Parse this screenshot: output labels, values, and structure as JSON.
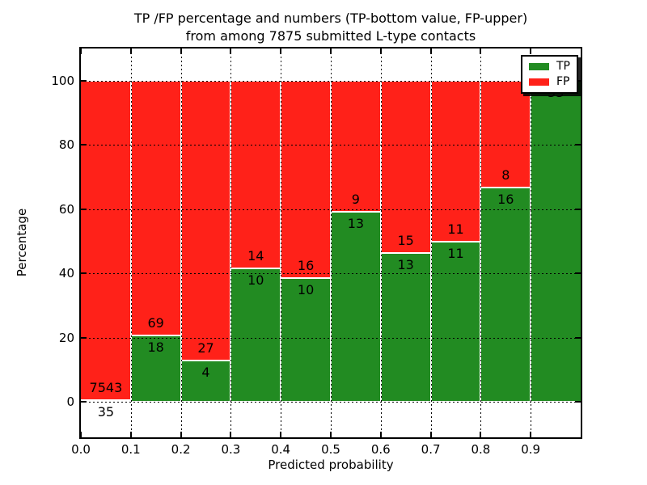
{
  "figure": {
    "title_line1": "TP /FP percentage and numbers (TP-bottom value, FP-upper)",
    "title_line2": "from among 7875 submitted L-type contacts",
    "xlabel": "Predicted probability",
    "ylabel": "Percentage"
  },
  "colors": {
    "tp_green": "#228b22",
    "fp_red": "#ff2119",
    "grid": "#000000",
    "background": "#ffffff"
  },
  "legend": {
    "items": [
      {
        "label": "TP",
        "color_key": "tp_green"
      },
      {
        "label": "FP",
        "color_key": "fp_red"
      }
    ]
  },
  "chart_data": {
    "type": "bar",
    "stacked": true,
    "normalized": "each bin scaled to 100%",
    "title": "TP /FP percentage and numbers (TP-bottom value, FP-upper) from among 7875 submitted L-type contacts",
    "xlabel": "Predicted probability",
    "ylabel": "Percentage",
    "total_contacts": 7875,
    "x_bin_edges": [
      0.0,
      0.1,
      0.2,
      0.3,
      0.4,
      0.5,
      0.6,
      0.7,
      0.8,
      0.9,
      1.0
    ],
    "x_tick_labels": [
      "0.0",
      "0.1",
      "0.2",
      "0.3",
      "0.4",
      "0.5",
      "0.6",
      "0.7",
      "0.8",
      "0.9"
    ],
    "y_ticks": [
      0,
      20,
      40,
      60,
      80,
      100
    ],
    "xlim": [
      0.0,
      1.0
    ],
    "ylim": [
      -11,
      110
    ],
    "grid": "dotted black, on",
    "legend_position": "upper right",
    "series": [
      {
        "name": "TP",
        "color_key": "tp_green",
        "counts": [
          35,
          18,
          4,
          10,
          10,
          13,
          13,
          11,
          16,
          33
        ]
      },
      {
        "name": "FP",
        "color_key": "fp_red",
        "counts": [
          7543,
          69,
          27,
          14,
          16,
          9,
          15,
          11,
          8,
          0
        ]
      }
    ],
    "tp_percent": [
      0.46,
      20.69,
      12.9,
      41.67,
      38.46,
      59.09,
      46.43,
      50.0,
      66.67,
      100.0
    ]
  }
}
